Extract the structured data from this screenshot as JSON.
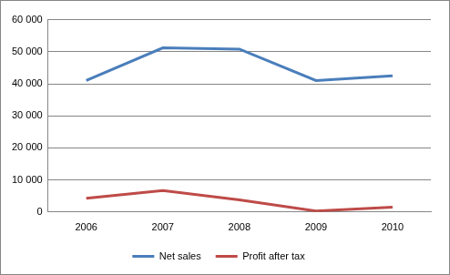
{
  "chart_data": {
    "type": "line",
    "categories": [
      "2006",
      "2007",
      "2008",
      "2009",
      "2010"
    ],
    "series": [
      {
        "name": "Net sales",
        "color": "#4a7ebb",
        "values": [
          41000,
          51200,
          50800,
          41000,
          42500
        ]
      },
      {
        "name": "Profit after tax",
        "color": "#be4b48",
        "values": [
          4300,
          6700,
          3800,
          300,
          1500
        ]
      }
    ],
    "ylim": [
      0,
      60000
    ],
    "yticks": [
      0,
      {
        "value": 10000,
        "label": "10 000"
      },
      {
        "value": 20000,
        "label": "20 000"
      },
      {
        "value": 30000,
        "label": "30 000"
      },
      {
        "value": 40000,
        "label": "40 000"
      },
      {
        "value": 50000,
        "label": "50 000"
      },
      {
        "value": 60000,
        "label": "60 000"
      }
    ],
    "grid": true,
    "legend": "bottom",
    "marker": "none",
    "line_style": "solid"
  }
}
